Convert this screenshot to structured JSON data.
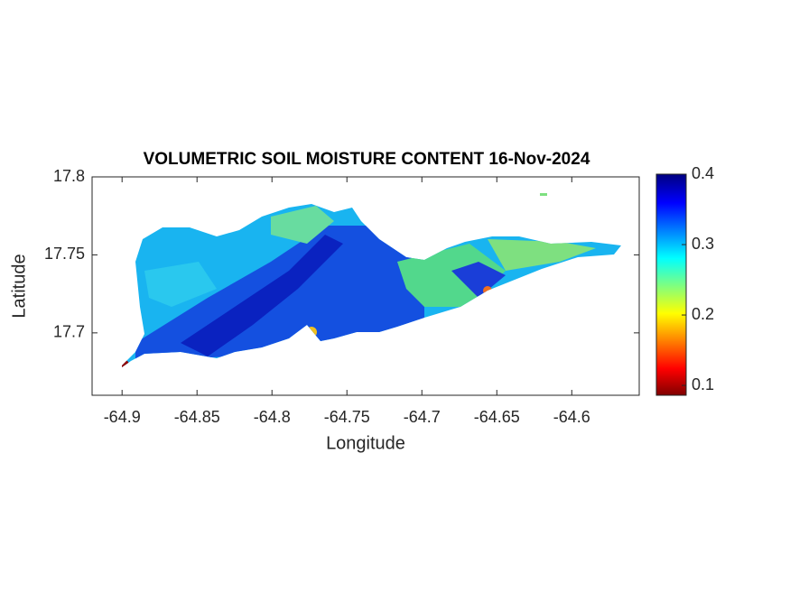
{
  "chart_data": {
    "type": "map",
    "title": "VOLUMETRIC SOIL MOISTURE CONTENT 16-Nov-2024",
    "xlabel": "Longitude",
    "ylabel": "Latitude",
    "xlim": [
      -64.92,
      -64.555
    ],
    "ylim": [
      17.66,
      17.8
    ],
    "xticks": [
      -64.9,
      -64.85,
      -64.8,
      -64.75,
      -64.7,
      -64.65,
      -64.6
    ],
    "yticks": [
      17.7,
      17.75,
      17.8
    ],
    "colorbar": {
      "clim": [
        0.086,
        0.4
      ],
      "ticks": [
        0.1,
        0.2,
        0.3,
        0.4
      ]
    }
  }
}
